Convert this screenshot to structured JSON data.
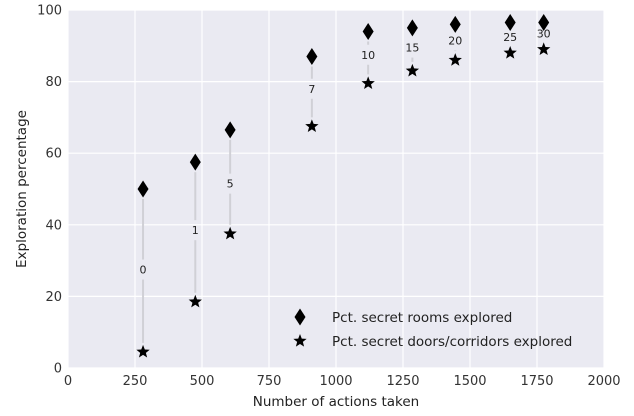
{
  "chart_data": {
    "type": "scatter",
    "title": "",
    "xlabel": "Number of actions taken",
    "ylabel": "Exploration percentage",
    "xlim": [
      0,
      2000
    ],
    "ylim": [
      0,
      100
    ],
    "xticks": [
      0,
      250,
      500,
      750,
      1000,
      1250,
      1500,
      1750,
      2000
    ],
    "yticks": [
      0,
      20,
      40,
      60,
      80,
      100
    ],
    "grid": true,
    "background_color": "#EAEAF2",
    "grid_color": "#ffffff",
    "connector_color": "#d0d0d6",
    "marker_color": "#000000",
    "legend_position": "lower-right",
    "series": [
      {
        "name": "Pct. secret rooms explored",
        "marker": "diamond",
        "x": [
          280,
          475,
          605,
          910,
          1120,
          1285,
          1445,
          1650,
          1775
        ],
        "y": [
          50,
          57.5,
          66.5,
          87,
          94,
          95,
          96,
          96.5,
          96.5
        ]
      },
      {
        "name": "Pct. secret doors/corridors explored",
        "marker": "star",
        "x": [
          280,
          475,
          605,
          910,
          1120,
          1285,
          1445,
          1650,
          1775
        ],
        "y": [
          4.5,
          18.5,
          37.5,
          67.5,
          79.5,
          83,
          86,
          88,
          89
        ]
      }
    ],
    "pair_labels": [
      "0",
      "1",
      "5",
      "7",
      "10",
      "15",
      "20",
      "25",
      "30"
    ],
    "pair_label_y": [
      27.5,
      38.5,
      51.5,
      78,
      87.5,
      89.5,
      91.5,
      92.5,
      93.5
    ]
  }
}
